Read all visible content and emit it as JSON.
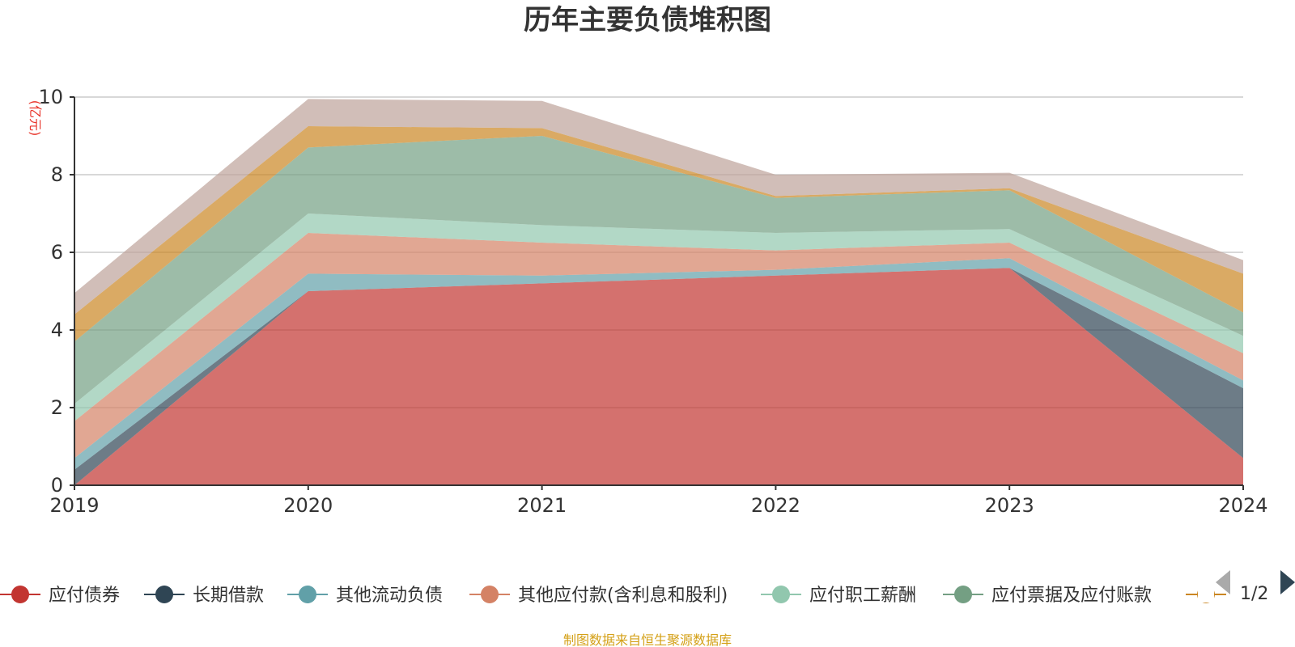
{
  "chart_data": {
    "type": "area",
    "stacked": true,
    "title": "历年主要负债堆积图",
    "unit_label": "(亿元)",
    "categories": [
      "2019",
      "2020",
      "2021",
      "2022",
      "2023",
      "2024"
    ],
    "ylim": [
      0,
      10
    ],
    "yticks": [
      "0",
      "2",
      "4",
      "6",
      "8",
      "10"
    ],
    "grid": true,
    "series": [
      {
        "name": "应付债券",
        "color": "#c23531",
        "values": [
          0.0,
          5.0,
          5.2,
          5.4,
          5.6,
          0.7
        ]
      },
      {
        "name": "长期借款",
        "color": "#2f4554",
        "values": [
          0.4,
          0.0,
          0.0,
          0.0,
          0.0,
          1.8
        ]
      },
      {
        "name": "其他流动负债",
        "color": "#61a0a8",
        "values": [
          0.3,
          0.45,
          0.2,
          0.15,
          0.25,
          0.2
        ]
      },
      {
        "name": "其他应付款(含利息和股利)",
        "color": "#d48265",
        "values": [
          0.95,
          1.05,
          0.85,
          0.5,
          0.4,
          0.7
        ]
      },
      {
        "name": "应付职工薪酬",
        "color": "#91c7ae",
        "values": [
          0.45,
          0.5,
          0.45,
          0.45,
          0.35,
          0.45
        ]
      },
      {
        "name": "应付票据及应付账款",
        "color": "#749f83",
        "values": [
          1.6,
          1.7,
          2.3,
          0.9,
          1.0,
          0.6
        ]
      },
      {
        "name": "",
        "color": "#ca8622",
        "values": [
          0.7,
          0.55,
          0.2,
          0.05,
          0.05,
          1.0
        ]
      },
      {
        "name": "",
        "color": "#bda29a",
        "values": [
          0.55,
          0.7,
          0.7,
          0.55,
          0.4,
          0.35
        ]
      }
    ]
  },
  "legend": {
    "pager": "1/2"
  },
  "footer": {
    "source": "制图数据来自恒生聚源数据库"
  }
}
